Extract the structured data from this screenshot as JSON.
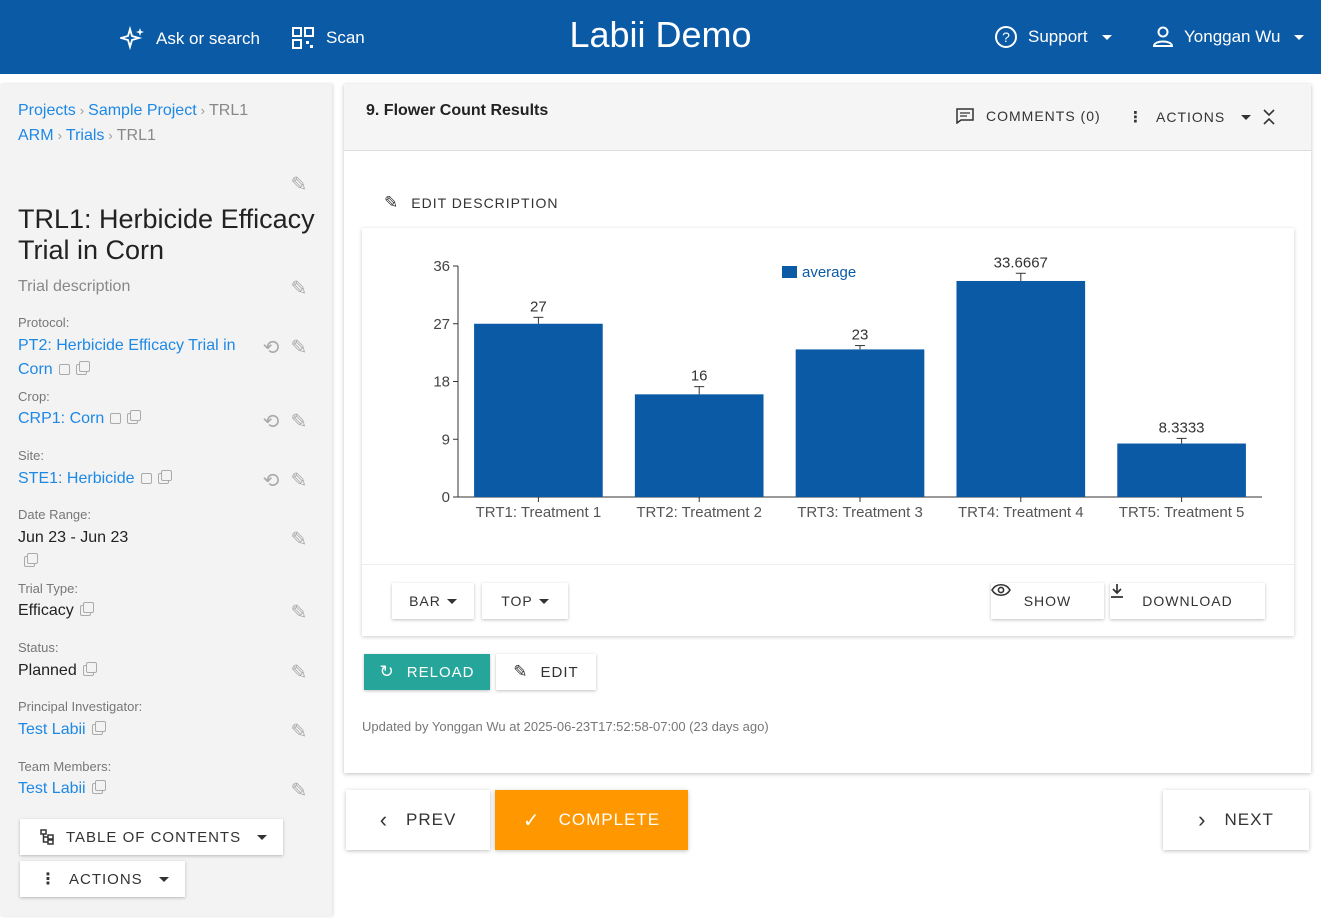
{
  "header": {
    "app_title": "Labii Demo",
    "ask_label": "Ask or search",
    "scan_label": "Scan",
    "support_label": "Support",
    "user_label": "Yonggan Wu",
    "color": "#0b5aa6"
  },
  "breadcrumbs": {
    "line1": [
      "Projects",
      "Sample Project",
      "TRL1"
    ],
    "line2": [
      "ARM",
      "Trials",
      "TRL1"
    ]
  },
  "trial": {
    "title": "TRL1: Herbicide Efficacy Trial in Corn",
    "description_placeholder": "Trial description",
    "protocol_label": "Protocol:",
    "protocol_line1": "PT2: Herbicide Efficacy Trial in",
    "protocol_line2": "Corn",
    "crop_label": "Crop:",
    "crop_value": "CRP1: Corn",
    "site_label": "Site:",
    "site_value": "STE1: Herbicide",
    "date_label": "Date Range:",
    "date_value": "Jun 23 - Jun 23",
    "type_label": "Trial Type:",
    "type_value": "Efficacy",
    "status_label": "Status:",
    "status_value": "Planned",
    "pi_label": "Principal Investigator:",
    "pi_value": "Test Labii",
    "team_label": "Team Members:",
    "team_value": "Test Labii"
  },
  "sidebar_buttons": {
    "toc": "TABLE OF CONTENTS",
    "actions": "ACTIONS"
  },
  "panel": {
    "title": "9. Flower Count Results",
    "comments": "COMMENTS (0)",
    "actions": "ACTIONS",
    "edit_description": "EDIT DESCRIPTION",
    "chart_type": "BAR",
    "legend_position": "TOP",
    "show": "SHOW",
    "download": "DOWNLOAD",
    "reload": "RELOAD",
    "edit": "EDIT",
    "updated": "Updated by Yonggan Wu at 2025-06-23T17:52:58-07:00 (23 days ago)"
  },
  "footer_nav": {
    "prev": "PREV",
    "complete": "COMPLETE",
    "next": "NEXT",
    "complete_color": "#ff9800"
  },
  "chart_data": {
    "type": "bar",
    "categories": [
      "TRT1: Treatment 1",
      "TRT2: Treatment 2",
      "TRT3: Treatment 3",
      "TRT4: Treatment 4",
      "TRT5: Treatment 5"
    ],
    "series": [
      {
        "name": "average",
        "values": [
          27,
          16,
          23,
          33.6667,
          8.3333
        ],
        "errors": [
          1,
          1.2,
          0.6,
          1.2,
          0.8
        ]
      }
    ],
    "data_labels": [
      "27",
      "16",
      "23",
      "33.6667",
      "8.3333"
    ],
    "yticks": [
      0,
      9,
      18,
      27,
      36
    ],
    "ylim": [
      0,
      36
    ],
    "legend": "top",
    "bar_color": "#0b5aa6"
  }
}
